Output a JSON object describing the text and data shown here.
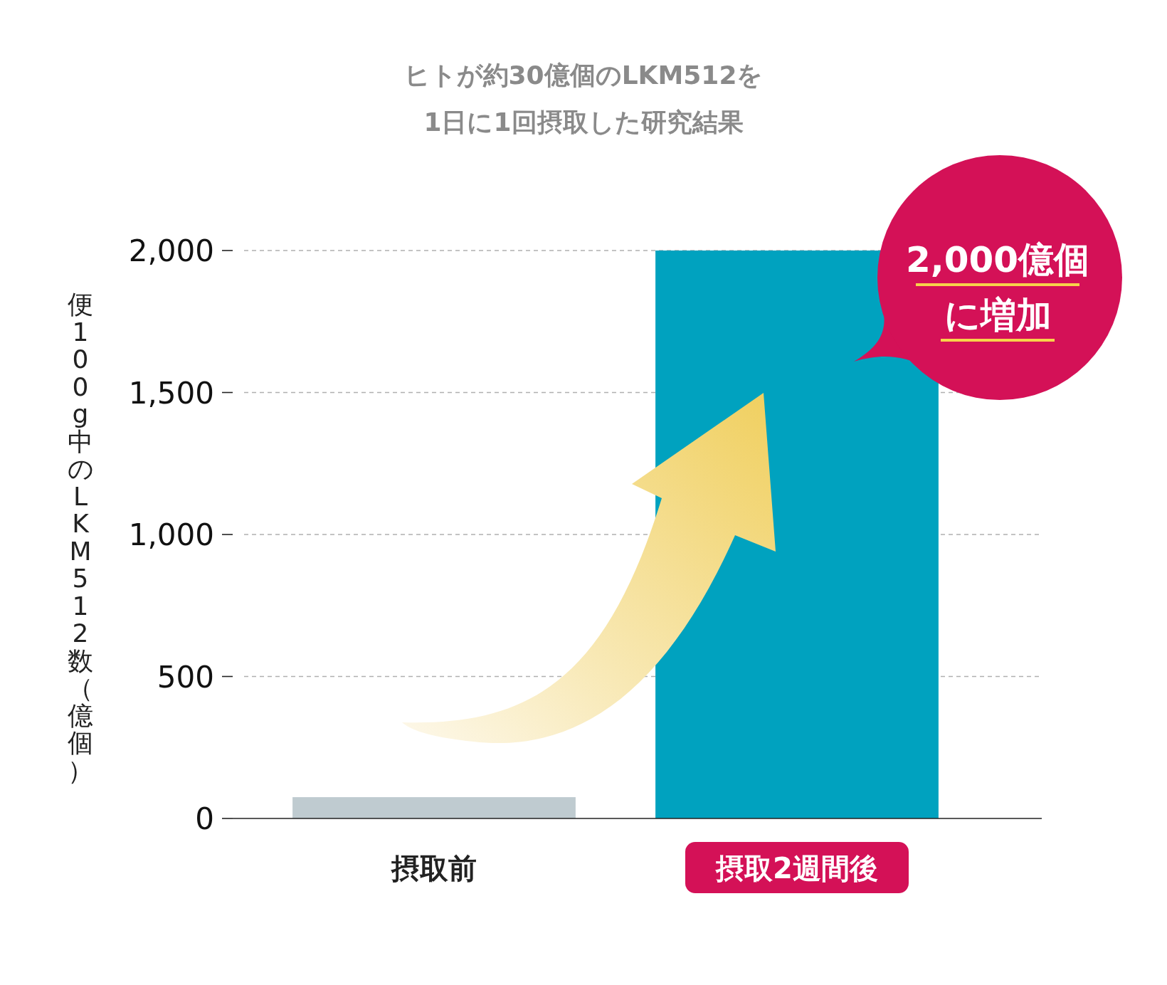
{
  "chart_data": {
    "type": "bar",
    "title": "ヒトが約30億個のLKM512を\n1日に1回摂取した研究結果",
    "ylabel": "便100g中のLKM512数（億個）",
    "categories": [
      "摂取前",
      "摂取2週間後"
    ],
    "values": [
      75,
      2000
    ],
    "colors": [
      "#bfcbd0",
      "#00a2bf"
    ],
    "ylim": [
      0,
      2000
    ],
    "yticks": [
      0,
      500,
      {
        "value": 1000,
        "label": "1,000"
      },
      {
        "value": 1500,
        "label": "1,500"
      },
      {
        "value": 2000,
        "label": "2,000"
      }
    ],
    "grid": "y",
    "annotations": [
      "2,000億個",
      "に増加"
    ]
  }
}
